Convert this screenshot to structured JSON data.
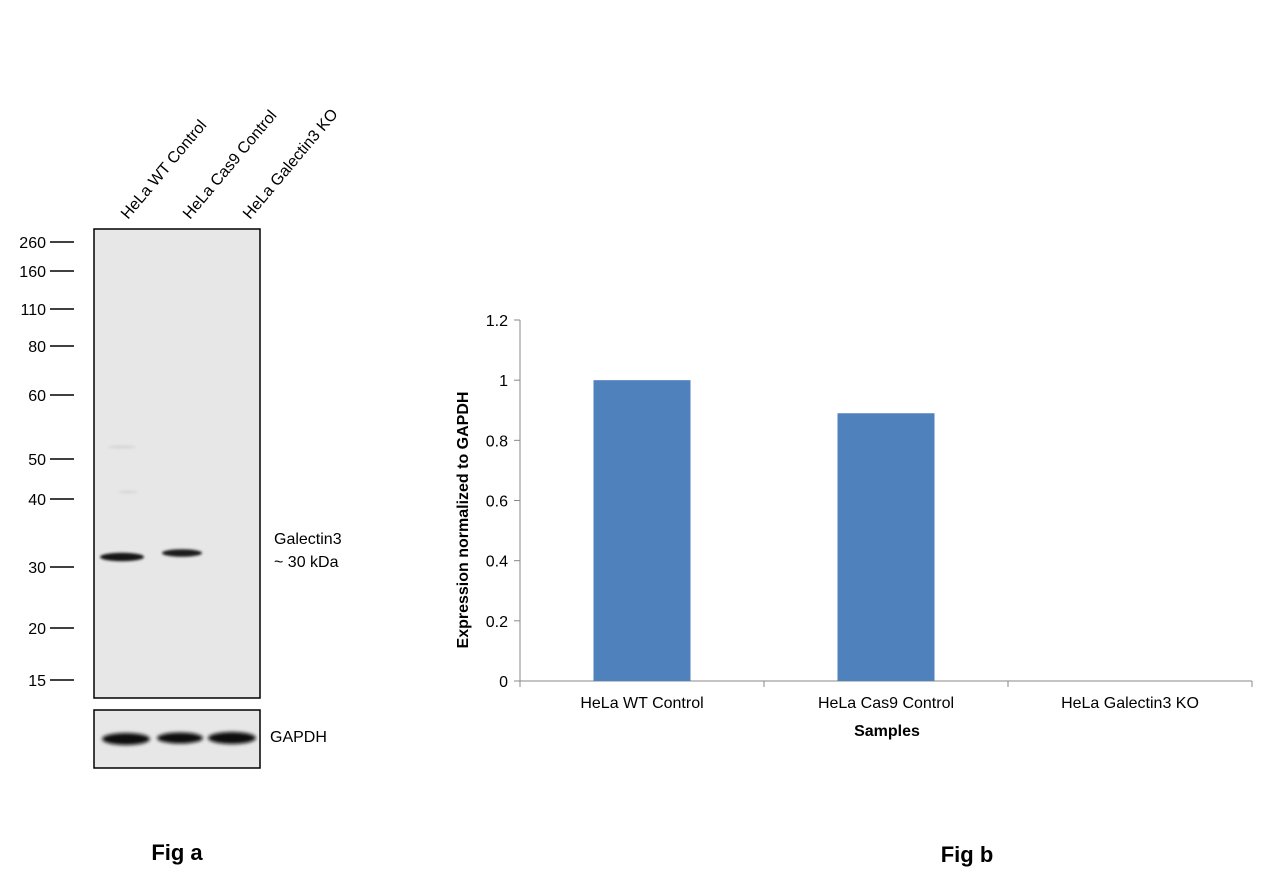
{
  "fig_a": {
    "caption": "Fig a",
    "lane_labels": [
      "HeLa WT Control",
      "HeLa Cas9 Control",
      "HeLa Galectin3 KO"
    ],
    "markers": [
      "260",
      "160",
      "110",
      "80",
      "60",
      "50",
      "40",
      "30",
      "20",
      "15"
    ],
    "band_label_line1": "Galectin3",
    "band_label_line2": "~ 30 kDa",
    "loading_control_label": "GAPDH",
    "colors": {
      "blot_background": "#e6e6e6",
      "band": "#141414"
    }
  },
  "fig_b": {
    "caption": "Fig b"
  },
  "chart_data": {
    "type": "bar",
    "categories": [
      "HeLa WT Control",
      "HeLa Cas9 Control",
      "HeLa Galectin3 KO"
    ],
    "values": [
      1.0,
      0.89,
      0.0
    ],
    "xlabel": "Samples",
    "ylabel": "Expression  normalized to GAPDH",
    "ylim": [
      0,
      1.2
    ],
    "yticks": [
      "0",
      "0.2",
      "0.4",
      "0.6",
      "0.8",
      "1",
      "1.2"
    ],
    "grid": false,
    "legend": "none",
    "bar_color": "#4f81bd",
    "axis_color": "#888888"
  }
}
